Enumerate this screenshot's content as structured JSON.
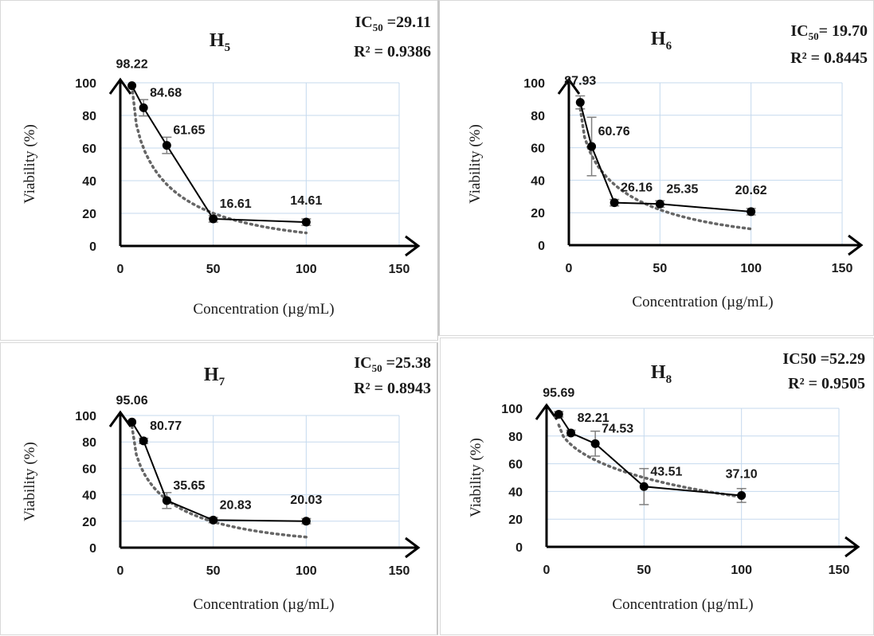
{
  "chart_data": [
    {
      "type": "line",
      "title": "H",
      "title_sub": "5",
      "stats": [
        {
          "prefix": "IC",
          "sub": "50",
          "suffix": " =29.11"
        },
        {
          "prefix": "R² = 0.9386",
          "sub": "",
          "suffix": ""
        }
      ],
      "xlabel": "Concentration (µg/mL)",
      "ylabel": "Viability (%)",
      "xlim": [
        0,
        150
      ],
      "ylim": [
        0,
        100
      ],
      "xticks": [
        "0",
        "50",
        "100",
        "150"
      ],
      "yticks": [
        "0",
        "20",
        "40",
        "60",
        "80",
        "100"
      ],
      "grid": true,
      "series": [
        {
          "x": [
            6.25,
            12.5,
            25,
            50,
            100
          ],
          "values": [
            98.22,
            84.68,
            61.65,
            16.61,
            14.61
          ],
          "errors": [
            0,
            5,
            5,
            2,
            2
          ],
          "labels": [
            "98.22",
            "84.68",
            "61.65",
            "16.61",
            "14.61"
          ]
        }
      ],
      "trendline": {
        "style": "dotted",
        "x": [
          6.25,
          100
        ],
        "start": 98,
        "end": 8
      }
    },
    {
      "type": "line",
      "title": "H",
      "title_sub": "6",
      "stats": [
        {
          "prefix": "IC",
          "sub": "50",
          "suffix": "= 19.70"
        },
        {
          "prefix": "R² = 0.8445",
          "sub": "",
          "suffix": ""
        }
      ],
      "xlabel": "Concentration (µg/mL)",
      "ylabel": "Viability (%)",
      "xlim": [
        0,
        150
      ],
      "ylim": [
        0,
        100
      ],
      "xticks": [
        "0",
        "50",
        "100",
        "150"
      ],
      "yticks": [
        "0",
        "20",
        "40",
        "60",
        "80",
        "100"
      ],
      "grid": true,
      "series": [
        {
          "x": [
            6.25,
            12.5,
            25,
            50,
            100
          ],
          "values": [
            87.93,
            60.76,
            26.16,
            25.35,
            20.62
          ],
          "errors": [
            4,
            18,
            2,
            2,
            2
          ],
          "labels": [
            "87.93",
            "60.76",
            "26.16",
            "25.35",
            "20.62"
          ]
        }
      ],
      "trendline": {
        "style": "dotted",
        "x": [
          6.25,
          100
        ],
        "start": 84,
        "end": 10
      }
    },
    {
      "type": "line",
      "title": "H",
      "title_sub": "7",
      "stats": [
        {
          "prefix": "IC",
          "sub": "50",
          "suffix": " =25.38"
        },
        {
          "prefix": "R² = 0.8943",
          "sub": "",
          "suffix": ""
        }
      ],
      "xlabel": "Concentration (µg/mL)",
      "ylabel": "Viability (%)",
      "xlim": [
        0,
        150
      ],
      "ylim": [
        0,
        100
      ],
      "xticks": [
        "0",
        "50",
        "100",
        "150"
      ],
      "yticks": [
        "0",
        "20",
        "40",
        "60",
        "80",
        "100"
      ],
      "grid": true,
      "series": [
        {
          "x": [
            6.25,
            12.5,
            25,
            50,
            100
          ],
          "values": [
            95.06,
            80.77,
            35.65,
            20.83,
            20.03
          ],
          "errors": [
            0,
            2,
            6,
            2,
            2
          ],
          "labels": [
            "95.06",
            "80.77",
            "35.65",
            "20.83",
            "20.03"
          ]
        }
      ],
      "trendline": {
        "style": "dotted",
        "x": [
          6.25,
          100
        ],
        "start": 92,
        "end": 8
      }
    },
    {
      "type": "line",
      "title": "H",
      "title_sub": "8",
      "stats": [
        {
          "prefix": "IC50 =52.29",
          "sub": "",
          "suffix": ""
        },
        {
          "prefix": "R² = 0.9505",
          "sub": "",
          "suffix": ""
        }
      ],
      "xlabel": "Concentration (µg/mL)",
      "ylabel": "Viability (%)",
      "xlim": [
        0,
        150
      ],
      "ylim": [
        0,
        100
      ],
      "xticks": [
        "0",
        "50",
        "100",
        "150"
      ],
      "yticks": [
        "0",
        "20",
        "40",
        "60",
        "80",
        "100"
      ],
      "grid": true,
      "series": [
        {
          "x": [
            6.25,
            12.5,
            25,
            50,
            100
          ],
          "values": [
            95.69,
            82.21,
            74.53,
            43.51,
            37.1
          ],
          "errors": [
            2,
            2,
            9,
            13,
            5
          ],
          "labels": [
            "95.69",
            "82.21",
            "74.53",
            "43.51",
            "37.10"
          ]
        }
      ],
      "trendline": {
        "style": "dotted",
        "x": [
          6.25,
          100
        ],
        "start": 88,
        "end": 36
      }
    }
  ]
}
